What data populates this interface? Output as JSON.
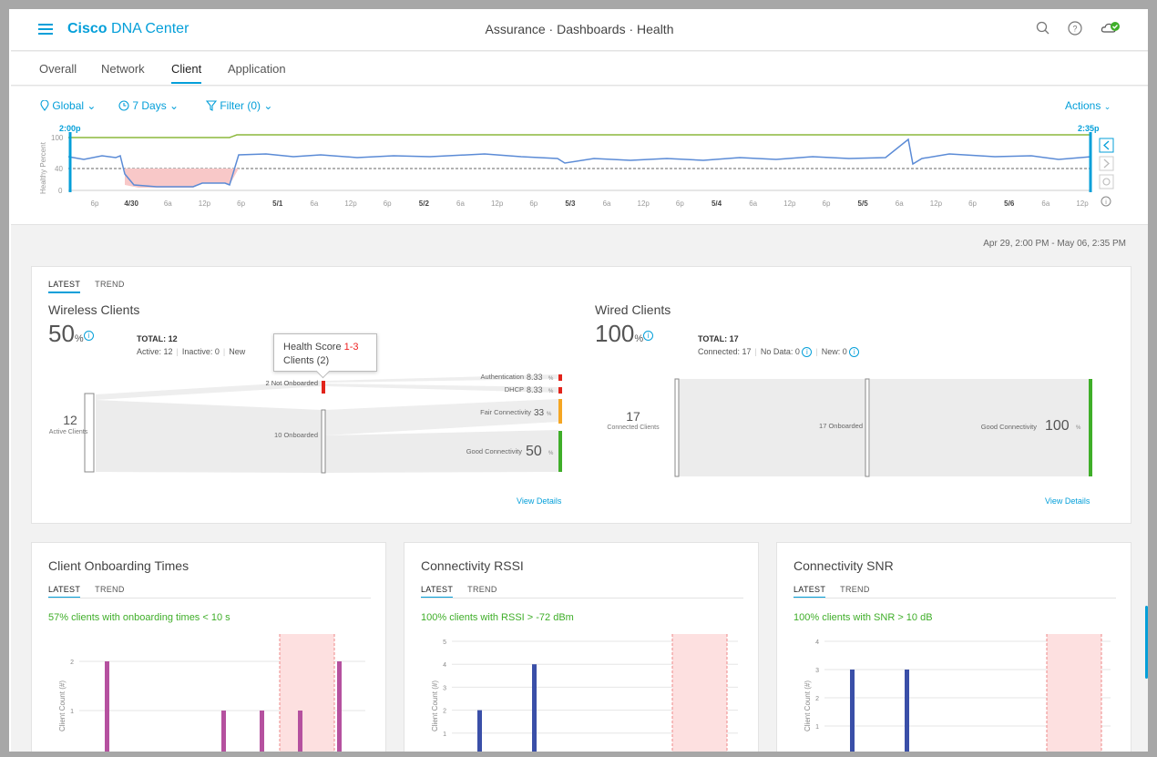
{
  "brand": {
    "bold": "Cisco",
    "name": "DNA Center"
  },
  "breadcrumb": "Assurance · Dashboards · Health",
  "tabs": [
    "Overall",
    "Network",
    "Client",
    "Application"
  ],
  "active_tab": "Client",
  "timeline": {
    "location": "Global",
    "range": "7 Days",
    "filter": "Filter (0)",
    "actions": "Actions",
    "start_label": "2:00p",
    "end_label": "2:35p",
    "y_axis_label": "Healthy Percent",
    "y_ticks": [
      "100",
      "40",
      "0"
    ],
    "x_ticks": [
      "6p",
      "4/30",
      "6a",
      "12p",
      "6p",
      "5/1",
      "6a",
      "12p",
      "6p",
      "5/2",
      "6a",
      "12p",
      "6p",
      "5/3",
      "6a",
      "12p",
      "6p",
      "5/4",
      "6a",
      "12p",
      "6p",
      "5/5",
      "6a",
      "12p",
      "6p",
      "5/6",
      "6a",
      "12p"
    ],
    "bold_ticks": [
      "4/30",
      "5/1",
      "5/2",
      "5/3",
      "5/4",
      "5/5",
      "5/6"
    ]
  },
  "date_range": "Apr 29, 2:00 PM - May 06, 2:35 PM",
  "client_health": {
    "tabs": [
      "LATEST",
      "TREND"
    ],
    "wireless": {
      "title": "Wireless Clients",
      "pct": "50",
      "pct_unit": "%",
      "total": "TOTAL: 12",
      "active": "Active: 12",
      "inactive": "Inactive: 0",
      "new": "New",
      "active_count": "12",
      "active_label": "Active Clients",
      "not_onboarded": "2 Not Onboarded",
      "onboarded": "10 Onboarded",
      "auth_label": "Authentication",
      "auth_pct": "8.33",
      "dhcp_label": "DHCP",
      "dhcp_pct": "8.33",
      "fair_label": "Fair Connectivity",
      "fair_pct": "33",
      "good_label": "Good Connectivity",
      "good_pct": "50",
      "pct_sign": "%",
      "view_details": "View Details"
    },
    "tooltip": {
      "label": "Health Score",
      "range": "1-3",
      "clients": "Clients (2)"
    },
    "wired": {
      "title": "Wired Clients",
      "pct": "100",
      "pct_unit": "%",
      "total": "TOTAL: 17",
      "connected": "Connected: 17",
      "no_data": "No Data: 0",
      "new": "New: 0",
      "connected_count": "17",
      "connected_label": "Connected Clients",
      "onboarded": "17 Onboarded",
      "good_label": "Good Connectivity",
      "good_pct": "100",
      "pct_sign": "%",
      "view_details": "View Details"
    }
  },
  "panels": [
    {
      "title": "Client Onboarding Times",
      "tabs": [
        "LATEST",
        "TREND"
      ],
      "summary": "57% clients with onboarding times < 10 s",
      "y_label": "Client Count (#)",
      "y_ticks": [
        "2",
        "1"
      ],
      "color": "#b5519f",
      "values": [
        2,
        1,
        1,
        1,
        2
      ]
    },
    {
      "title": "Connectivity RSSI",
      "tabs": [
        "LATEST",
        "TREND"
      ],
      "summary": "100% clients with RSSI > -72 dBm",
      "y_label": "Client Count (#)",
      "y_ticks": [
        "5",
        "4",
        "3",
        "2",
        "1"
      ],
      "color": "#3a4fa8",
      "values": [
        2,
        4
      ]
    },
    {
      "title": "Connectivity SNR",
      "tabs": [
        "LATEST",
        "TREND"
      ],
      "summary": "100% clients with SNR > 10 dB",
      "y_label": "Client Count (#)",
      "y_ticks": [
        "4",
        "3",
        "2",
        "1"
      ],
      "color": "#3a4fa8",
      "values": [
        3,
        3
      ]
    }
  ],
  "colors": {
    "accent": "#049fd9",
    "good": "#3fae29",
    "fair": "#f5a623",
    "poor": "#e2231a"
  }
}
